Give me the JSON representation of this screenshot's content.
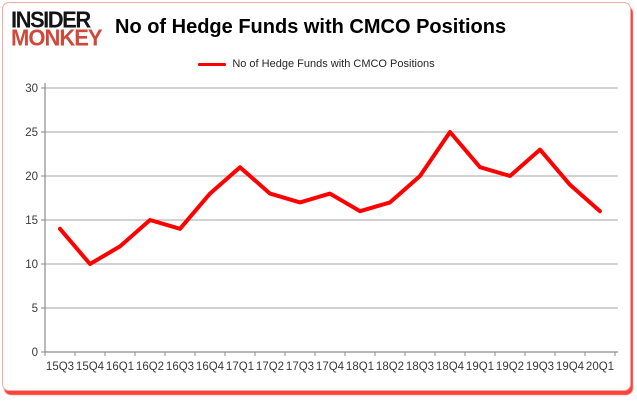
{
  "logo": {
    "line1": "INSIDER",
    "line2": "MONKEY"
  },
  "header": {
    "title": "No of Hedge Funds with CMCO Positions"
  },
  "legend": {
    "label": "No of Hedge Funds with CMCO Positions"
  },
  "colors": {
    "line": "#ff0000",
    "grid": "#a6a6a6",
    "axis": "#8c8c8c",
    "tick_label": "#3a3a3a",
    "logo_monkey": "#d0483a",
    "card_border": "#f2aca4",
    "card_shadow": "#f91409"
  },
  "chart_data": {
    "type": "line",
    "title": "No of Hedge Funds with CMCO Positions",
    "categories": [
      "15Q3",
      "15Q4",
      "16Q1",
      "16Q2",
      "16Q3",
      "16Q4",
      "17Q1",
      "17Q2",
      "17Q3",
      "17Q4",
      "18Q1",
      "18Q2",
      "18Q3",
      "18Q4",
      "19Q1",
      "19Q2",
      "19Q3",
      "19Q4",
      "20Q1"
    ],
    "series": [
      {
        "name": "No of Hedge Funds with CMCO Positions",
        "color": "#ff0000",
        "values": [
          14,
          10,
          12,
          15,
          14,
          18,
          21,
          18,
          17,
          18,
          16,
          17,
          20,
          25,
          21,
          20,
          23,
          19,
          16
        ]
      }
    ],
    "xlabel": "",
    "ylabel": "",
    "ylim": [
      0,
      30
    ],
    "ytick_step": 5,
    "ytick_labels": [
      "0",
      "5",
      "10",
      "15",
      "20",
      "25",
      "30"
    ],
    "grid": true,
    "legend_position": "top"
  }
}
